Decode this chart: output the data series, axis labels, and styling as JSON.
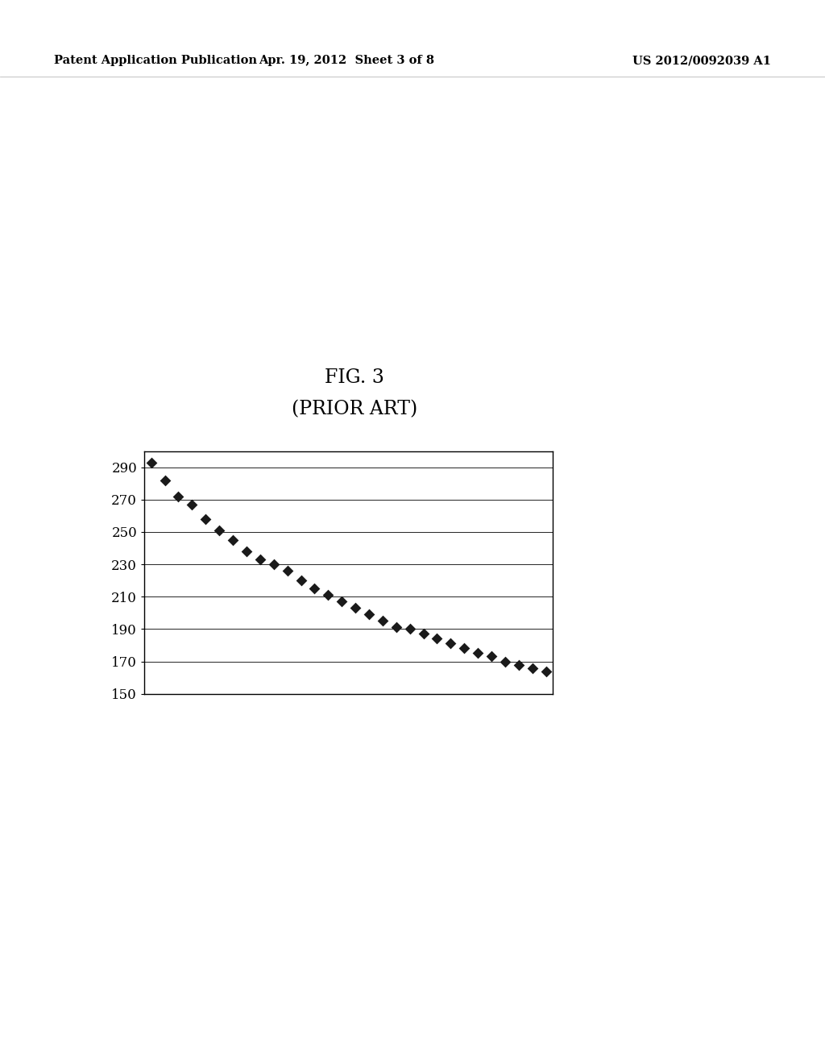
{
  "header_left": "Patent Application Publication",
  "header_center": "Apr. 19, 2012  Sheet 3 of 8",
  "header_right": "US 2012/0092039 A1",
  "fig_title_line1": "FIG. 3",
  "fig_title_line2": "(PRIOR ART)",
  "background_color": "#ffffff",
  "text_color": "#000000",
  "y_values": [
    293,
    282,
    272,
    267,
    258,
    251,
    245,
    238,
    233,
    230,
    226,
    220,
    215,
    211,
    207,
    203,
    199,
    195,
    191,
    190,
    187,
    184,
    181,
    178,
    175,
    173,
    170,
    168,
    166,
    164
  ],
  "y_min": 150,
  "y_max": 300,
  "y_ticks": [
    150,
    170,
    190,
    210,
    230,
    250,
    270,
    290
  ],
  "marker_color": "#1a1a1a",
  "marker_size": 7,
  "grid_color": "#000000",
  "chart_box_color": "#000000",
  "header_fontsize": 10.5,
  "fig_title_fontsize": 17,
  "tick_fontsize": 12
}
